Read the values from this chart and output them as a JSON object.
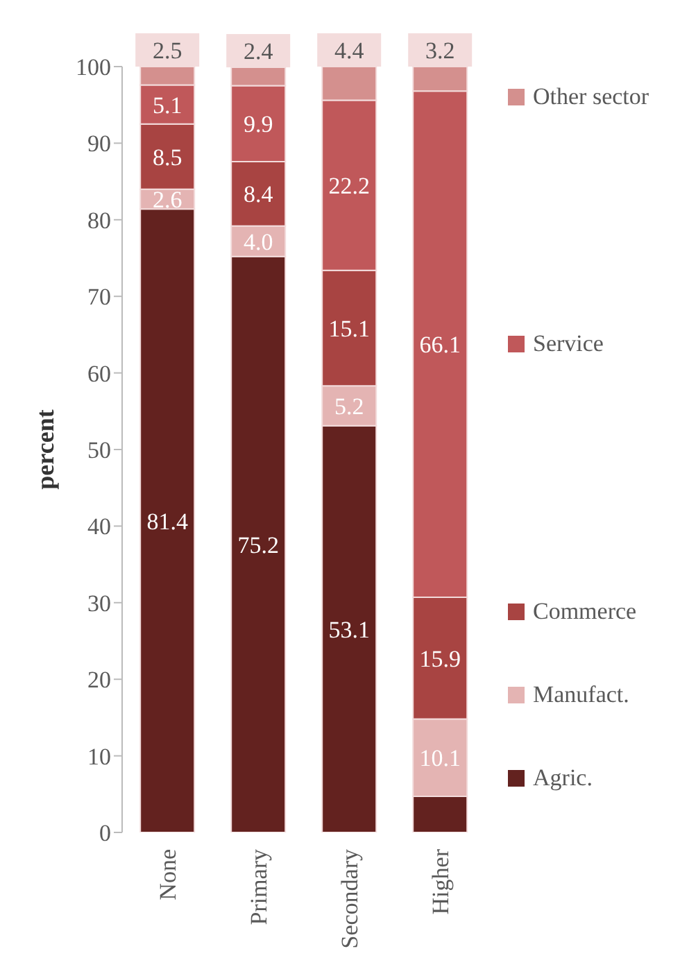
{
  "chart_data": {
    "type": "bar",
    "stacked": true,
    "ylabel": "percent",
    "categories": [
      "None",
      "Primary",
      "Secondary",
      "Higher"
    ],
    "series": [
      {
        "name": "Agric.",
        "color": "#63221f",
        "values": [
          81.4,
          75.2,
          53.1,
          4.7
        ],
        "value_labels": [
          "81.4",
          "75.2",
          "53.1",
          null
        ]
      },
      {
        "name": "Manufact.",
        "color": "#e4b4b3",
        "values": [
          2.6,
          4.0,
          5.2,
          10.1
        ],
        "value_labels": [
          "2.6",
          "4.0",
          "5.2",
          "10.1"
        ]
      },
      {
        "name": "Commerce",
        "color": "#a84442",
        "values": [
          8.5,
          8.4,
          15.1,
          15.9
        ],
        "value_labels": [
          "8.5",
          "8.4",
          "15.1",
          "15.9"
        ]
      },
      {
        "name": "Service",
        "color": "#c0585a",
        "values": [
          5.1,
          9.9,
          22.2,
          66.1
        ],
        "value_labels": [
          "5.1",
          "9.9",
          "22.2",
          "66.1"
        ]
      },
      {
        "name": "Other sector",
        "color": "#d4908e",
        "values": [
          2.5,
          2.4,
          4.4,
          3.2
        ],
        "value_labels": [
          "2.5",
          "2.4",
          "4.4",
          "3.2"
        ]
      }
    ],
    "ylim": [
      0,
      100
    ],
    "yticks": [
      0,
      10,
      20,
      30,
      40,
      50,
      60,
      70,
      80,
      90,
      100
    ],
    "grid": false,
    "legend": "right"
  }
}
